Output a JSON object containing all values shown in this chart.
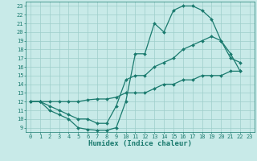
{
  "background_color": "#c8eae8",
  "grid_color": "#9ececa",
  "line_color": "#1a7a6e",
  "xlabel": "Humidex (Indice chaleur)",
  "xlim": [
    -0.5,
    23.5
  ],
  "ylim": [
    8.5,
    23.5
  ],
  "yticks": [
    9,
    10,
    11,
    12,
    13,
    14,
    15,
    16,
    17,
    18,
    19,
    20,
    21,
    22,
    23
  ],
  "xticks": [
    0,
    1,
    2,
    3,
    4,
    5,
    6,
    7,
    8,
    9,
    10,
    11,
    12,
    13,
    14,
    15,
    16,
    17,
    18,
    19,
    20,
    21,
    22,
    23
  ],
  "curve1_x": [
    0,
    1,
    2,
    3,
    4,
    5,
    6,
    7,
    8,
    9,
    10,
    11,
    12,
    13,
    14,
    15,
    16,
    17,
    18,
    19,
    20,
    21,
    22
  ],
  "curve1_y": [
    12,
    12,
    11,
    10.5,
    10,
    9,
    8.8,
    8.7,
    8.7,
    9,
    12,
    17.5,
    17.5,
    21,
    20,
    22.5,
    23,
    23,
    22.5,
    21.5,
    19,
    17,
    16.5
  ],
  "curve2_x": [
    0,
    1,
    2,
    3,
    4,
    5,
    6,
    7,
    8,
    9,
    10,
    11,
    12,
    13,
    14,
    15,
    16,
    17,
    18,
    19,
    20,
    21,
    22
  ],
  "curve2_y": [
    12,
    12,
    11.5,
    11,
    10.5,
    10,
    10,
    9.5,
    9.5,
    11.5,
    14.5,
    15,
    15,
    16,
    16.5,
    17,
    18,
    18.5,
    19,
    19.5,
    19,
    17.5,
    15.5
  ],
  "curve3_x": [
    0,
    1,
    2,
    3,
    4,
    5,
    6,
    7,
    8,
    9,
    10,
    11,
    12,
    13,
    14,
    15,
    16,
    17,
    18,
    19,
    20,
    21,
    22
  ],
  "curve3_y": [
    12,
    12,
    12,
    12,
    12,
    12,
    12.2,
    12.3,
    12.3,
    12.5,
    13,
    13,
    13,
    13.5,
    14,
    14,
    14.5,
    14.5,
    15,
    15,
    15,
    15.5,
    15.5
  ],
  "marker_size": 2.0,
  "line_width": 0.9,
  "xlabel_fontsize": 6.5,
  "tick_fontsize": 5.0
}
